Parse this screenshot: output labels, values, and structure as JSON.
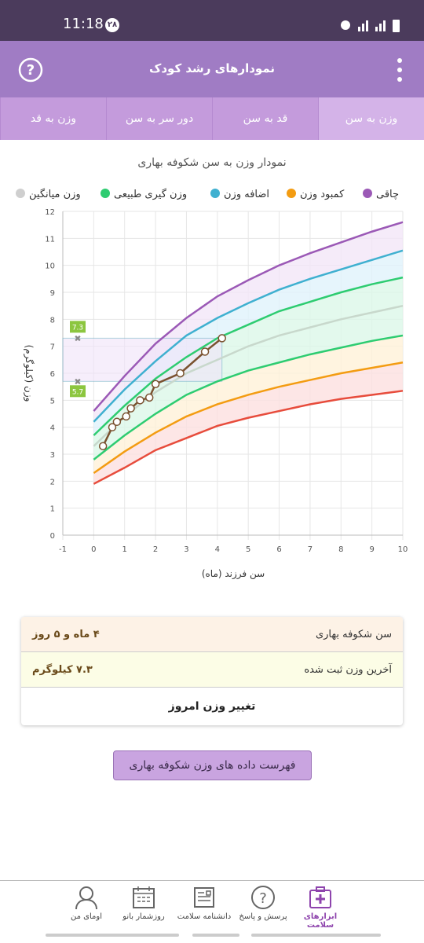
{
  "status_bar": {
    "time": "11:18",
    "badge": "۲۸"
  },
  "header": {
    "title": "نمودارهای رشد کودک"
  },
  "tabs": [
    "وزن به سن",
    "قد به سن",
    "دور سر به سن",
    "وزن به قد"
  ],
  "chart_data": {
    "type": "line",
    "title": "نمودار وزن به سن شکوفه بهاری",
    "y_label": "وزن (کیلوگرم)",
    "x_label": "سن فرزند (ماه)",
    "legend": [
      {
        "name": "چاقی",
        "color": "#9b59b6"
      },
      {
        "name": "کمبود وزن",
        "color": "#f39c12"
      },
      {
        "name": "اضافه وزن",
        "color": "#3fb0d0"
      },
      {
        "name": "وزن گیری طبیعی",
        "color": "#2ecc71"
      },
      {
        "name": "وزن میانگین",
        "color": "#cfcfcf"
      }
    ],
    "x": [
      0,
      1,
      2,
      3,
      4,
      5,
      6,
      7,
      8,
      9,
      10
    ],
    "series": [
      {
        "color": "#9b59b6",
        "fill": "#f3e6f8",
        "values": [
          4.6,
          5.9,
          7.1,
          8.05,
          8.85,
          9.45,
          10.0,
          10.45,
          10.85,
          11.25,
          11.6
        ]
      },
      {
        "color": "#3fb0d0",
        "fill": "#e0f3fb",
        "values": [
          4.2,
          5.4,
          6.45,
          7.4,
          8.05,
          8.6,
          9.1,
          9.5,
          9.85,
          10.2,
          10.55
        ]
      },
      {
        "color": "#2ecc71",
        "fill": "#dcf8e8",
        "values": [
          3.7,
          4.8,
          5.8,
          6.6,
          7.3,
          7.8,
          8.3,
          8.65,
          9.0,
          9.3,
          9.55
        ]
      },
      {
        "color": "#c8d8cc",
        "fill": "#dcf8e8",
        "values": [
          3.3,
          4.4,
          5.3,
          6.0,
          6.5,
          7.0,
          7.4,
          7.7,
          8.0,
          8.25,
          8.5
        ]
      },
      {
        "color": "#2ecc71",
        "fill": "#fff1d8",
        "values": [
          2.8,
          3.7,
          4.5,
          5.2,
          5.7,
          6.1,
          6.4,
          6.7,
          6.95,
          7.2,
          7.4
        ]
      },
      {
        "color": "#f39c12",
        "fill": "#fde0e0",
        "values": [
          2.3,
          3.1,
          3.8,
          4.4,
          4.85,
          5.2,
          5.5,
          5.75,
          6.0,
          6.2,
          6.4
        ]
      },
      {
        "color": "#e74c3c",
        "values": [
          1.9,
          2.5,
          3.15,
          3.6,
          4.05,
          4.35,
          4.6,
          4.85,
          5.05,
          5.2,
          5.35
        ]
      }
    ],
    "child": {
      "color": "#7a5230",
      "x": [
        0.3,
        0.6,
        0.75,
        1.05,
        1.2,
        1.5,
        1.8,
        2.0,
        2.8,
        3.6,
        4.15
      ],
      "values": [
        3.3,
        4.0,
        4.2,
        4.4,
        4.7,
        5.0,
        5.1,
        5.6,
        6.0,
        6.8,
        7.3
      ]
    },
    "markers": [
      7.3,
      5.7
    ],
    "xlim": [
      -1,
      10
    ],
    "xticks": [
      -1,
      0,
      1,
      2,
      3,
      4,
      5,
      6,
      7,
      8,
      9,
      10
    ],
    "ylim": [
      0,
      12
    ],
    "yticks": [
      0,
      1,
      2,
      3,
      4,
      5,
      6,
      7,
      8,
      9,
      10,
      11,
      12
    ],
    "grid": true
  },
  "info": {
    "rows": [
      [
        "سن شکوفه بهاری",
        "۴ ماه و ۵ روز"
      ],
      [
        "آخرین وزن ثبت شده",
        "۷.۳ کیلوگرم"
      ]
    ],
    "action": "تغییر وزن امروز"
  },
  "list_button": "فهرست داده های وزن شکوفه بهاری",
  "nav": [
    "ابزارهای سلامت",
    "پرسش و پاسخ",
    "دانشنامه سلامت",
    "روزشمار بانو",
    "اومای من"
  ]
}
